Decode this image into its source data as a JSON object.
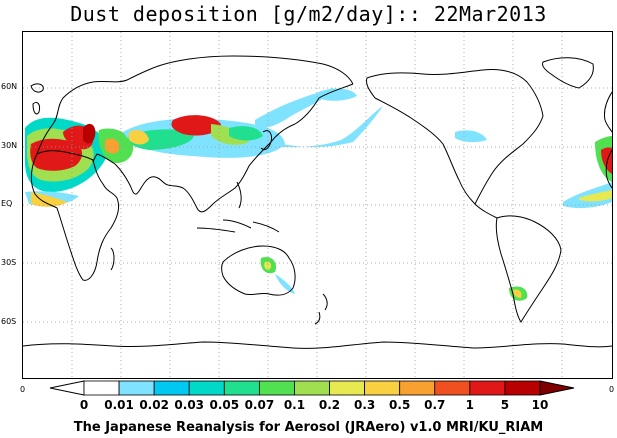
{
  "title": "Dust deposition [g/m2/day]:: 22Mar2013",
  "lat_labels": [
    "60N",
    "30N",
    "EQ",
    "30S",
    "60S"
  ],
  "lat_values": [
    60,
    30,
    0,
    -30,
    -60
  ],
  "edge_labels": {
    "left": "0",
    "right": "0"
  },
  "colorbar": {
    "labels": [
      "0",
      "0.01",
      "0.02",
      "0.03",
      "0.05",
      "0.07",
      "0.1",
      "0.2",
      "0.3",
      "0.5",
      "0.7",
      "1",
      "5",
      "10"
    ],
    "colors": [
      "#ffffff",
      "#ffffff",
      "#7fe3ff",
      "#00c8f0",
      "#00d8c8",
      "#20e090",
      "#50e050",
      "#a0e050",
      "#e8e850",
      "#f8d040",
      "#f8a030",
      "#f05020",
      "#e01818",
      "#b80000",
      "#800000"
    ]
  },
  "footer": "The Japanese Reanalysis for Aerosol (JRAero) v1.0 MRI/KU_RIAM"
}
